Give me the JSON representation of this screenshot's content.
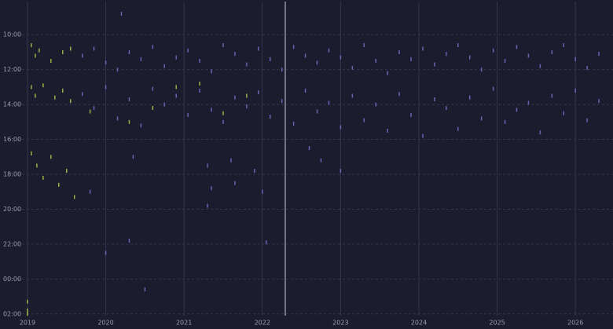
{
  "chart_data": {
    "type": "scatter",
    "xlim": [
      2018.87,
      2026.48
    ],
    "xticks": [
      2019,
      2020,
      2021,
      2022,
      2023,
      2024,
      2025,
      2026
    ],
    "ylim": [
      8.1,
      26.1
    ],
    "y_inverted": true,
    "yticks": [
      {
        "value": 10,
        "label": "10:00"
      },
      {
        "value": 12,
        "label": "12:00"
      },
      {
        "value": 14,
        "label": "14:00"
      },
      {
        "value": 16,
        "label": "16:00"
      },
      {
        "value": 18,
        "label": "18:00"
      },
      {
        "value": 20,
        "label": "20:00"
      },
      {
        "value": 22,
        "label": "22:00"
      },
      {
        "value": 24,
        "label": "00:00"
      },
      {
        "value": 26,
        "label": "02:00"
      }
    ],
    "grid": true,
    "series": [
      {
        "color": "#b9c84a",
        "x": [
          2019.05,
          2019.1,
          2019.15,
          2019.3,
          2019.45,
          2019.55,
          2019.05,
          2019.1,
          2019.2,
          2019.35,
          2019.45,
          2019.55,
          2019.05,
          2019.12,
          2019.2,
          2019.3,
          2019.4,
          2019.5,
          2019.6,
          2019.8,
          2020.3,
          2020.6,
          2020.9,
          2021.2,
          2021.5,
          2021.8,
          2019.0,
          2019.0,
          2019.0
        ],
        "y": [
          10.6,
          11.2,
          10.9,
          11.5,
          11.0,
          10.8,
          13.0,
          13.5,
          12.9,
          13.6,
          13.2,
          13.8,
          16.8,
          17.5,
          18.2,
          17.0,
          18.6,
          17.8,
          19.3,
          14.4,
          15.0,
          14.2,
          13.0,
          12.8,
          14.5,
          13.5,
          25.3,
          25.8,
          26.0
        ]
      },
      {
        "color": "#7a70cc",
        "x": [
          2019.7,
          2019.85,
          2020.0,
          2020.15,
          2020.3,
          2020.45,
          2020.6,
          2020.75,
          2020.9,
          2021.05,
          2021.2,
          2021.35,
          2021.5,
          2021.65,
          2021.8,
          2021.95,
          2022.1,
          2022.25,
          2022.4,
          2022.55,
          2022.7,
          2022.85,
          2023.0,
          2023.15,
          2023.3,
          2023.45,
          2023.6,
          2023.75,
          2023.9,
          2024.05,
          2024.2,
          2024.35,
          2024.5,
          2024.65,
          2024.8,
          2024.95,
          2025.1,
          2025.25,
          2025.4,
          2025.55,
          2025.7,
          2025.85,
          2026.0,
          2026.15,
          2026.3,
          2019.7,
          2019.85,
          2020.0,
          2020.15,
          2020.3,
          2020.45,
          2020.6,
          2020.75,
          2020.9,
          2021.05,
          2021.2,
          2021.35,
          2021.5,
          2021.65,
          2021.8,
          2021.95,
          2022.1,
          2022.25,
          2022.4,
          2022.55,
          2022.7,
          2022.85,
          2023.0,
          2023.15,
          2023.3,
          2023.45,
          2023.6,
          2023.75,
          2023.9,
          2024.05,
          2024.2,
          2024.35,
          2024.5,
          2024.65,
          2024.8,
          2024.95,
          2025.1,
          2025.25,
          2025.4,
          2025.55,
          2025.7,
          2025.85,
          2026.0,
          2026.15,
          2026.3,
          2020.35,
          2021.3,
          2021.35,
          2021.3,
          2021.6,
          2021.65,
          2021.9,
          2022.0,
          2022.6,
          2022.75,
          2023.0,
          2019.8,
          2020.0,
          2020.3,
          2020.5,
          2020.2,
          2022.05
        ],
        "y": [
          11.2,
          10.8,
          11.6,
          12.0,
          11.0,
          11.4,
          10.7,
          11.8,
          11.3,
          10.9,
          11.5,
          12.1,
          10.6,
          11.1,
          11.7,
          10.8,
          11.4,
          12.0,
          10.7,
          11.2,
          11.6,
          10.9,
          11.3,
          11.9,
          10.6,
          11.5,
          12.2,
          11.0,
          11.4,
          10.8,
          11.7,
          11.1,
          10.6,
          11.3,
          12.0,
          10.9,
          11.5,
          10.7,
          11.2,
          11.8,
          11.0,
          10.6,
          11.4,
          11.9,
          11.1,
          13.4,
          14.2,
          13.0,
          14.8,
          13.7,
          15.2,
          13.1,
          14.0,
          13.5,
          14.6,
          13.2,
          14.3,
          15.0,
          13.6,
          14.1,
          13.3,
          14.7,
          13.8,
          15.1,
          13.2,
          14.4,
          13.9,
          15.3,
          13.5,
          14.9,
          14.0,
          15.5,
          13.4,
          14.6,
          15.8,
          13.7,
          14.2,
          15.4,
          13.6,
          14.8,
          13.1,
          15.0,
          14.3,
          13.9,
          15.6,
          13.5,
          14.5,
          13.2,
          14.9,
          13.8,
          17.0,
          17.5,
          18.8,
          19.8,
          17.2,
          18.5,
          17.8,
          19.0,
          16.5,
          17.2,
          17.8,
          19.0,
          22.5,
          21.8,
          24.6,
          8.8,
          21.9
        ]
      }
    ]
  }
}
